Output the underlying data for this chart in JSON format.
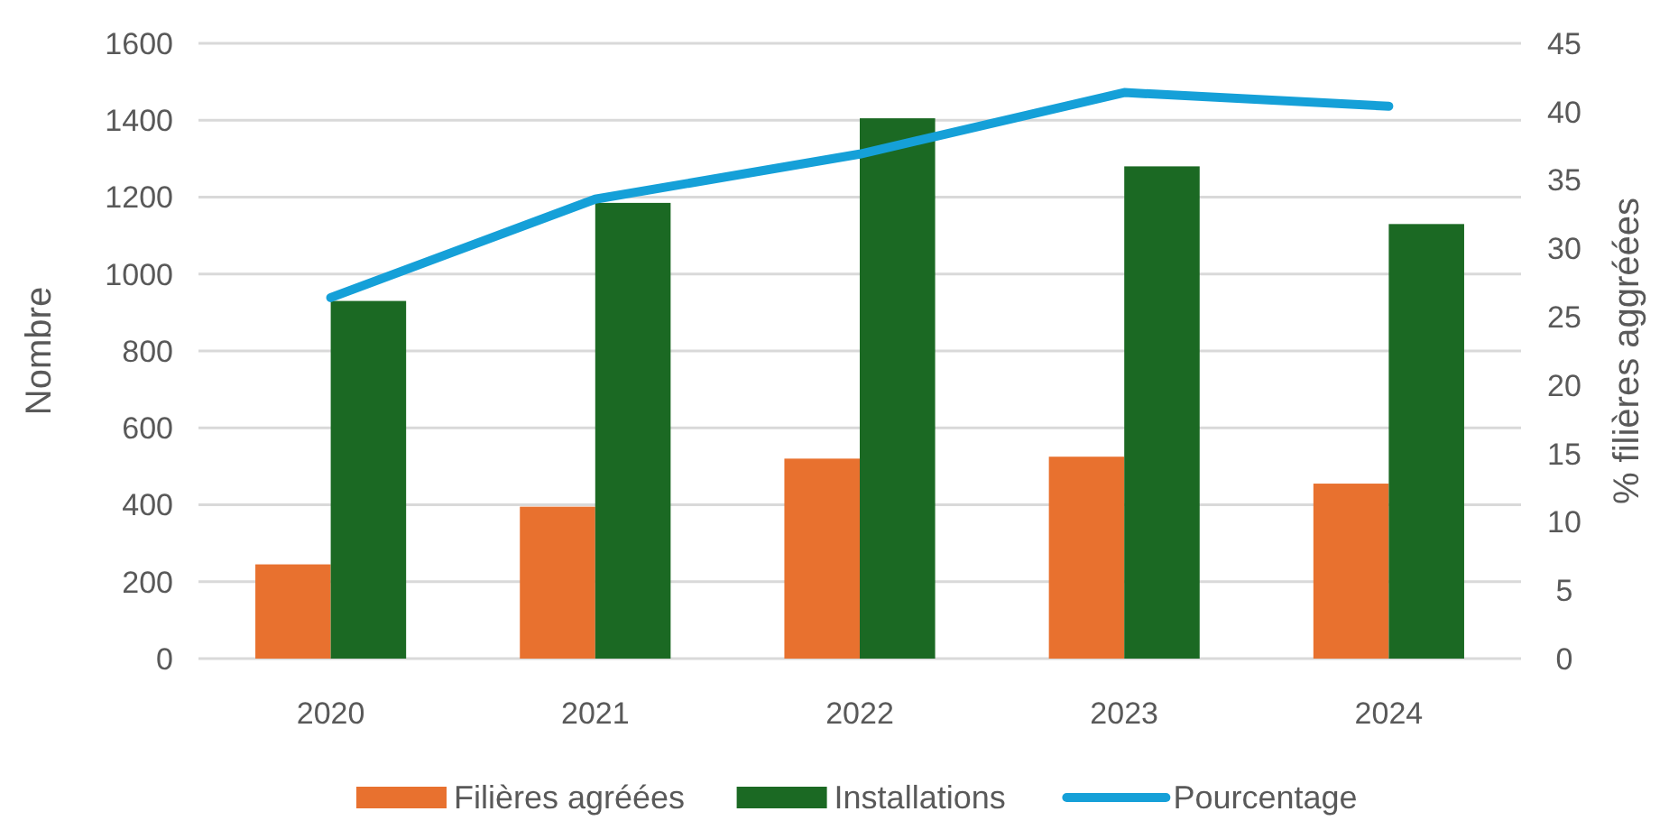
{
  "chart_data": {
    "type": "bar",
    "categories": [
      "2020",
      "2021",
      "2022",
      "2023",
      "2024"
    ],
    "series": [
      {
        "name": "Filières agréées",
        "color": "#e8712f",
        "values": [
          245,
          395,
          520,
          525,
          455
        ]
      },
      {
        "name": "Installations",
        "color": "#1b6923",
        "values": [
          930,
          1185,
          1405,
          1280,
          1130
        ]
      },
      {
        "name": "Pourcentage",
        "type": "line",
        "axis": "y2",
        "color": "#15a0d8",
        "values": [
          26.4,
          33.6,
          36.9,
          41.4,
          40.4
        ]
      }
    ],
    "ylabel": "Nombre",
    "y2label": "% filières aggréées",
    "ylim": [
      0,
      1600
    ],
    "yticks": [
      0,
      200,
      400,
      600,
      800,
      1000,
      1200,
      1400,
      1600
    ],
    "y2lim": [
      0,
      45
    ],
    "y2ticks": [
      0,
      5,
      10,
      15,
      20,
      25,
      30,
      35,
      40,
      45
    ],
    "grid": "y",
    "legend": "bottom"
  }
}
